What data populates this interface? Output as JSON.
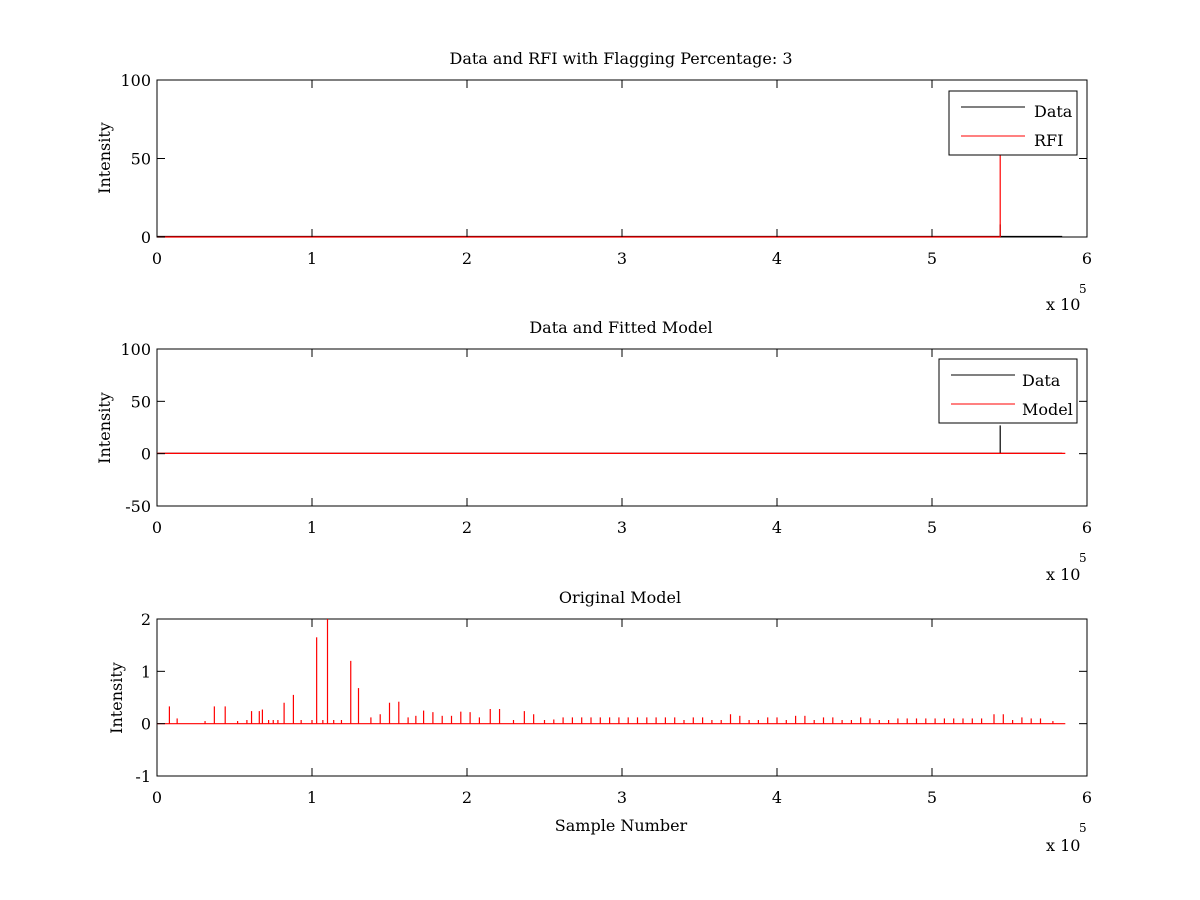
{
  "colors": {
    "background": "#ffffff",
    "axes": "#000000",
    "data": "#000000",
    "red": "#ff0000"
  },
  "chart_data": [
    {
      "type": "line",
      "title": "Data and RFI with Flagging Percentage: 3",
      "xlabel": "",
      "ylabel": "Intensity",
      "xlim": [
        0,
        6
      ],
      "ylim": [
        0,
        100
      ],
      "x_exponent_label": "x 10",
      "x_exponent": "5",
      "xticks": [
        "0",
        "1",
        "2",
        "3",
        "4",
        "5",
        "6"
      ],
      "yticks": [
        "0",
        "50",
        "100"
      ],
      "legend": {
        "placement": "top-right",
        "entries": [
          "Data",
          "RFI"
        ]
      },
      "series": [
        {
          "name": "Data",
          "color": "#000000",
          "baseline": 0.3,
          "x_end": 5.84,
          "spikes": [
            [
              5.44,
              8
            ]
          ]
        },
        {
          "name": "RFI",
          "color": "#ff0000",
          "baseline": 0,
          "x_end": 5.44,
          "spikes": [
            [
              5.44,
              52
            ]
          ]
        }
      ]
    },
    {
      "type": "line",
      "title": "Data and Fitted Model",
      "xlabel": "",
      "ylabel": "Intensity",
      "xlim": [
        0,
        6
      ],
      "ylim": [
        -50,
        100
      ],
      "x_exponent_label": "x 10",
      "x_exponent": "5",
      "xticks": [
        "0",
        "1",
        "2",
        "3",
        "4",
        "5",
        "6"
      ],
      "yticks": [
        "-50",
        "0",
        "50",
        "100"
      ],
      "legend": {
        "placement": "top-right",
        "entries": [
          "Data",
          "Model"
        ]
      },
      "series": [
        {
          "name": "Data",
          "color": "#000000",
          "baseline": 0.3,
          "x_end": 5.84,
          "spikes": [
            [
              5.44,
              27
            ]
          ]
        },
        {
          "name": "Model",
          "color": "#ff0000",
          "baseline": 0.3,
          "x_end": 5.86,
          "spikes": []
        }
      ]
    },
    {
      "type": "line",
      "title": "Original Model",
      "xlabel": "Sample Number",
      "ylabel": "Intensity",
      "xlim": [
        0,
        6
      ],
      "ylim": [
        -1,
        2
      ],
      "x_exponent_label": "x 10",
      "x_exponent": "5",
      "xticks": [
        "0",
        "1",
        "2",
        "3",
        "4",
        "5",
        "6"
      ],
      "yticks": [
        "-1",
        "0",
        "1",
        "2"
      ],
      "series": [
        {
          "name": "",
          "color": "#ff0000",
          "baseline": 0,
          "x_end": 5.86,
          "spikes": [
            [
              0.08,
              0.33
            ],
            [
              0.13,
              0.1
            ],
            [
              0.31,
              0.05
            ],
            [
              0.37,
              0.33
            ],
            [
              0.44,
              0.33
            ],
            [
              0.52,
              0.05
            ],
            [
              0.58,
              0.07
            ],
            [
              0.61,
              0.24
            ],
            [
              0.66,
              0.24
            ],
            [
              0.68,
              0.27
            ],
            [
              0.72,
              0.07
            ],
            [
              0.75,
              0.07
            ],
            [
              0.78,
              0.07
            ],
            [
              0.82,
              0.4
            ],
            [
              0.88,
              0.55
            ],
            [
              0.93,
              0.07
            ],
            [
              1.0,
              0.07
            ],
            [
              1.03,
              1.65
            ],
            [
              1.07,
              0.07
            ],
            [
              1.1,
              2.0
            ],
            [
              1.14,
              0.07
            ],
            [
              1.19,
              0.07
            ],
            [
              1.25,
              1.2
            ],
            [
              1.3,
              0.68
            ],
            [
              1.38,
              0.12
            ],
            [
              1.44,
              0.18
            ],
            [
              1.5,
              0.4
            ],
            [
              1.56,
              0.42
            ],
            [
              1.62,
              0.12
            ],
            [
              1.67,
              0.15
            ],
            [
              1.72,
              0.25
            ],
            [
              1.78,
              0.22
            ],
            [
              1.84,
              0.15
            ],
            [
              1.9,
              0.15
            ],
            [
              1.96,
              0.23
            ],
            [
              2.02,
              0.22
            ],
            [
              2.08,
              0.12
            ],
            [
              2.15,
              0.28
            ],
            [
              2.21,
              0.28
            ],
            [
              2.3,
              0.07
            ],
            [
              2.37,
              0.24
            ],
            [
              2.43,
              0.18
            ],
            [
              2.5,
              0.07
            ],
            [
              2.56,
              0.08
            ],
            [
              2.62,
              0.12
            ],
            [
              2.68,
              0.12
            ],
            [
              2.74,
              0.12
            ],
            [
              2.8,
              0.12
            ],
            [
              2.86,
              0.12
            ],
            [
              2.92,
              0.12
            ],
            [
              2.98,
              0.12
            ],
            [
              3.04,
              0.12
            ],
            [
              3.1,
              0.12
            ],
            [
              3.16,
              0.12
            ],
            [
              3.22,
              0.12
            ],
            [
              3.28,
              0.12
            ],
            [
              3.34,
              0.12
            ],
            [
              3.4,
              0.07
            ],
            [
              3.46,
              0.12
            ],
            [
              3.52,
              0.12
            ],
            [
              3.58,
              0.07
            ],
            [
              3.64,
              0.07
            ],
            [
              3.7,
              0.18
            ],
            [
              3.76,
              0.15
            ],
            [
              3.82,
              0.07
            ],
            [
              3.88,
              0.07
            ],
            [
              3.94,
              0.12
            ],
            [
              4.0,
              0.12
            ],
            [
              4.06,
              0.07
            ],
            [
              4.12,
              0.15
            ],
            [
              4.18,
              0.15
            ],
            [
              4.24,
              0.07
            ],
            [
              4.3,
              0.12
            ],
            [
              4.36,
              0.12
            ],
            [
              4.42,
              0.07
            ],
            [
              4.48,
              0.07
            ],
            [
              4.54,
              0.12
            ],
            [
              4.6,
              0.1
            ],
            [
              4.66,
              0.07
            ],
            [
              4.72,
              0.07
            ],
            [
              4.78,
              0.1
            ],
            [
              4.84,
              0.1
            ],
            [
              4.9,
              0.1
            ],
            [
              4.96,
              0.1
            ],
            [
              5.02,
              0.1
            ],
            [
              5.08,
              0.1
            ],
            [
              5.14,
              0.1
            ],
            [
              5.2,
              0.1
            ],
            [
              5.26,
              0.1
            ],
            [
              5.32,
              0.1
            ],
            [
              5.4,
              0.18
            ],
            [
              5.46,
              0.18
            ],
            [
              5.52,
              0.07
            ],
            [
              5.58,
              0.12
            ],
            [
              5.64,
              0.1
            ],
            [
              5.7,
              0.1
            ],
            [
              5.78,
              0.05
            ]
          ]
        }
      ]
    }
  ]
}
